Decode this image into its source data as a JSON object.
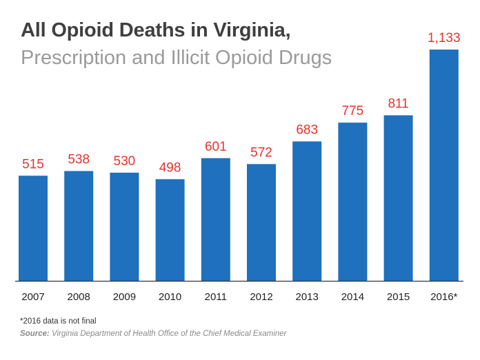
{
  "title": "All Opioid Deaths in Virginia,",
  "subtitle": "Prescription and Illicit Opioid Drugs",
  "footnote": "*2016 data is not final",
  "source_label": "Source:",
  "source_text": "Virginia Department of Health Office of the Chief Medical Examiner",
  "colors": {
    "bar": "#1f70bd",
    "value_label": "#e8322c",
    "axis": "#333333",
    "tick_label": "#222222"
  },
  "chart_data": {
    "type": "bar",
    "title": "All Opioid Deaths in Virginia,",
    "subtitle": "Prescription and Illicit Opioid Drugs",
    "xlabel": "",
    "ylabel": "",
    "categories": [
      "2007",
      "2008",
      "2009",
      "2010",
      "2011",
      "2012",
      "2013",
      "2014",
      "2015",
      "2016*"
    ],
    "values": [
      515,
      538,
      530,
      498,
      601,
      572,
      683,
      775,
      811,
      1133
    ],
    "value_labels": [
      "515",
      "538",
      "530",
      "498",
      "601",
      "572",
      "683",
      "775",
      "811",
      "1,133"
    ],
    "ylim": [
      0,
      1133
    ],
    "grid": false,
    "legend": "none"
  }
}
